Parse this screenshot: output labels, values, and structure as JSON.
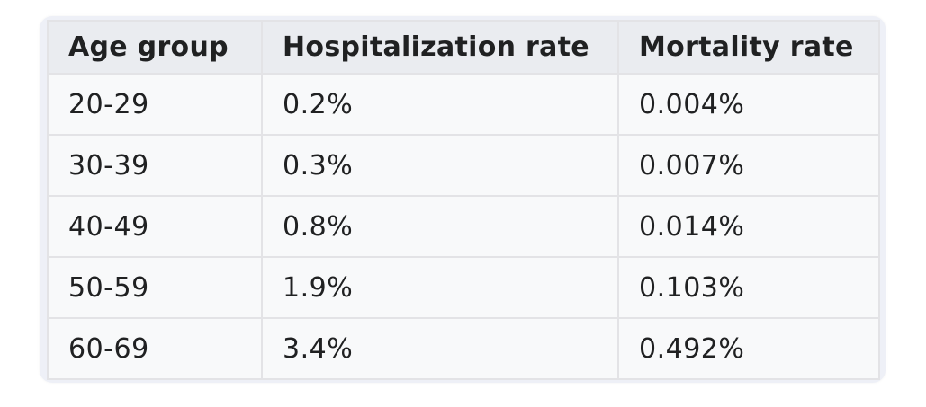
{
  "table": {
    "headers": [
      "Age group",
      "Hospitalization rate",
      "Mortality rate"
    ],
    "rows": [
      [
        "20-29",
        "0.2%",
        "0.004%"
      ],
      [
        "30-39",
        "0.3%",
        "0.007%"
      ],
      [
        "40-49",
        "0.8%",
        "0.014%"
      ],
      [
        "50-59",
        "1.9%",
        "0.103%"
      ],
      [
        "60-69",
        "3.4%",
        "0.492%"
      ]
    ]
  },
  "colors": {
    "header_background": "#eaecf0",
    "cell_background": "#f8f9fa",
    "border": "#e3e3e6",
    "text": "#202122"
  }
}
